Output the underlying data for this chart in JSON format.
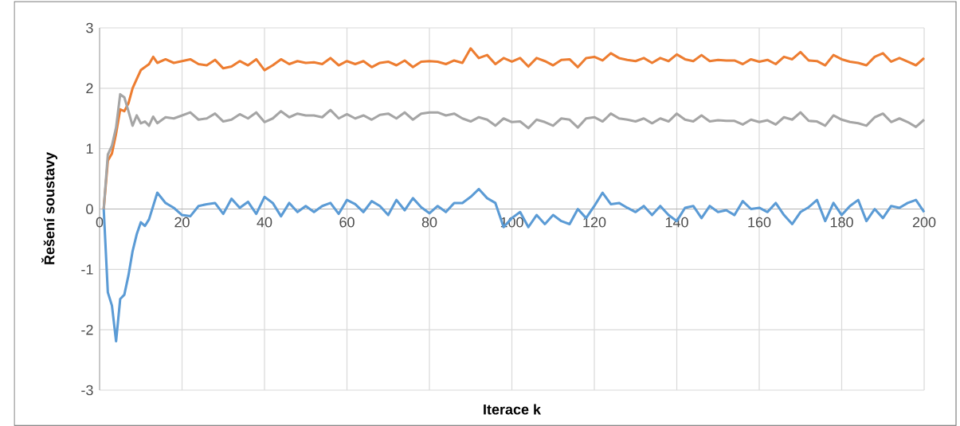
{
  "chart_data": {
    "type": "line",
    "xlabel": "Iterace k",
    "ylabel": "Řešení soustavy",
    "xlim": [
      0,
      200
    ],
    "ylim": [
      -3,
      3
    ],
    "xticks": [
      0,
      20,
      40,
      60,
      80,
      100,
      120,
      140,
      160,
      180,
      200
    ],
    "yticks": [
      -3,
      -2,
      -1,
      0,
      1,
      2,
      3
    ],
    "grid": true,
    "marker": "none",
    "line_style": "solid",
    "x": [
      1,
      2,
      3,
      4,
      5,
      6,
      7,
      8,
      9,
      10,
      11,
      12,
      13,
      14,
      16,
      18,
      20,
      22,
      24,
      26,
      28,
      30,
      32,
      34,
      36,
      38,
      40,
      42,
      44,
      46,
      48,
      50,
      52,
      54,
      56,
      58,
      60,
      62,
      64,
      66,
      68,
      70,
      72,
      74,
      76,
      78,
      80,
      82,
      84,
      86,
      88,
      90,
      92,
      94,
      96,
      98,
      100,
      102,
      104,
      106,
      108,
      110,
      112,
      114,
      116,
      118,
      120,
      122,
      124,
      126,
      128,
      130,
      132,
      134,
      136,
      138,
      140,
      142,
      144,
      146,
      148,
      150,
      152,
      154,
      156,
      158,
      160,
      162,
      164,
      166,
      168,
      170,
      172,
      174,
      176,
      178,
      180,
      182,
      184,
      186,
      188,
      190,
      192,
      194,
      196,
      198,
      200
    ],
    "series": [
      {
        "color": "#ed7d31",
        "values": [
          0,
          0.8,
          0.92,
          1.25,
          1.65,
          1.62,
          1.75,
          2.0,
          2.15,
          2.3,
          2.35,
          2.4,
          2.52,
          2.42,
          2.48,
          2.42,
          2.45,
          2.48,
          2.4,
          2.38,
          2.47,
          2.33,
          2.36,
          2.45,
          2.38,
          2.48,
          2.3,
          2.38,
          2.48,
          2.4,
          2.45,
          2.42,
          2.43,
          2.4,
          2.5,
          2.38,
          2.45,
          2.4,
          2.45,
          2.35,
          2.42,
          2.44,
          2.38,
          2.46,
          2.35,
          2.44,
          2.45,
          2.44,
          2.4,
          2.46,
          2.42,
          2.66,
          2.5,
          2.55,
          2.4,
          2.5,
          2.44,
          2.5,
          2.36,
          2.5,
          2.45,
          2.38,
          2.47,
          2.48,
          2.35,
          2.5,
          2.52,
          2.46,
          2.58,
          2.5,
          2.47,
          2.45,
          2.5,
          2.42,
          2.5,
          2.45,
          2.56,
          2.48,
          2.45,
          2.55,
          2.45,
          2.47,
          2.46,
          2.46,
          2.4,
          2.48,
          2.44,
          2.47,
          2.4,
          2.52,
          2.48,
          2.6,
          2.46,
          2.45,
          2.38,
          2.55,
          2.48,
          2.44,
          2.42,
          2.38,
          2.52,
          2.58,
          2.44,
          2.5,
          2.44,
          2.38,
          2.5
        ]
      },
      {
        "color": "#a5a5a5",
        "values": [
          0,
          0.9,
          1.05,
          1.35,
          1.9,
          1.85,
          1.62,
          1.38,
          1.55,
          1.42,
          1.45,
          1.38,
          1.53,
          1.42,
          1.52,
          1.5,
          1.55,
          1.6,
          1.48,
          1.5,
          1.58,
          1.45,
          1.48,
          1.57,
          1.5,
          1.6,
          1.44,
          1.5,
          1.62,
          1.52,
          1.58,
          1.55,
          1.55,
          1.52,
          1.64,
          1.5,
          1.57,
          1.5,
          1.55,
          1.48,
          1.56,
          1.58,
          1.5,
          1.6,
          1.48,
          1.58,
          1.6,
          1.6,
          1.55,
          1.58,
          1.5,
          1.45,
          1.52,
          1.48,
          1.38,
          1.5,
          1.44,
          1.45,
          1.34,
          1.48,
          1.44,
          1.38,
          1.5,
          1.48,
          1.35,
          1.5,
          1.52,
          1.45,
          1.58,
          1.5,
          1.48,
          1.45,
          1.5,
          1.42,
          1.5,
          1.45,
          1.58,
          1.48,
          1.45,
          1.55,
          1.45,
          1.47,
          1.46,
          1.46,
          1.4,
          1.48,
          1.44,
          1.47,
          1.4,
          1.52,
          1.48,
          1.6,
          1.46,
          1.45,
          1.38,
          1.55,
          1.48,
          1.44,
          1.42,
          1.38,
          1.52,
          1.58,
          1.44,
          1.5,
          1.44,
          1.36,
          1.48
        ]
      },
      {
        "color": "#5b9bd5",
        "values": [
          0,
          -1.38,
          -1.6,
          -2.19,
          -1.49,
          -1.42,
          -1.1,
          -0.7,
          -0.42,
          -0.22,
          -0.28,
          -0.17,
          0.05,
          0.27,
          0.1,
          0.02,
          -0.1,
          -0.12,
          0.05,
          0.08,
          0.1,
          -0.08,
          0.17,
          0.02,
          0.12,
          -0.08,
          0.2,
          0.1,
          -0.12,
          0.1,
          -0.05,
          0.05,
          -0.05,
          0.05,
          0.1,
          -0.08,
          0.15,
          0.08,
          -0.05,
          0.13,
          0.05,
          -0.1,
          0.15,
          -0.02,
          0.18,
          0.03,
          -0.07,
          0.05,
          -0.05,
          0.1,
          0.1,
          0.2,
          0.33,
          0.18,
          0.1,
          -0.3,
          -0.15,
          -0.05,
          -0.3,
          -0.1,
          -0.25,
          -0.1,
          -0.2,
          -0.25,
          0.0,
          -0.15,
          0.05,
          0.27,
          0.08,
          0.1,
          0.02,
          -0.05,
          0.05,
          -0.1,
          0.05,
          -0.1,
          -0.2,
          0.02,
          0.05,
          -0.15,
          0.05,
          -0.05,
          -0.02,
          -0.1,
          0.13,
          0.0,
          0.02,
          -0.05,
          0.1,
          -0.1,
          -0.25,
          -0.05,
          0.03,
          0.15,
          -0.2,
          0.1,
          -0.1,
          0.05,
          0.15,
          -0.2,
          0.0,
          -0.15,
          0.05,
          0.02,
          0.1,
          0.15,
          -0.05
        ]
      }
    ]
  }
}
